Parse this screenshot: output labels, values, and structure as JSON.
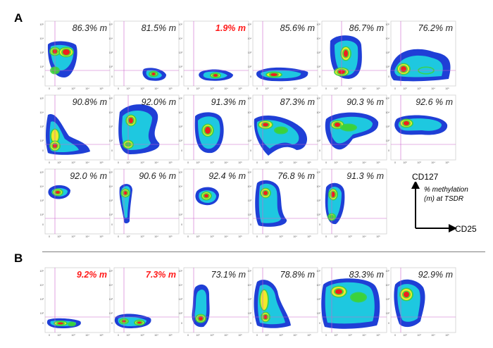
{
  "panel_letters": {
    "a": "A",
    "b": "B"
  },
  "axis_legend": {
    "y_label": "CD127",
    "x_label": "CD25",
    "note_line1": "% methylation",
    "note_line2": "(m) at TSDR"
  },
  "tick_labels": {
    "zero": "0",
    "e2": "10²",
    "e3": "10³",
    "e4": "10⁴",
    "e5": "10⁵"
  },
  "palette": {
    "outer": "#1f3fd6",
    "mid": "#1ec8e0",
    "green": "#3cd23a",
    "yellow": "#f2e82a",
    "red": "#ef1f1f",
    "gate": "#cc66cc"
  },
  "plots": [
    {
      "id": "a1",
      "label": "86.3% m",
      "low": false
    },
    {
      "id": "a2",
      "label": "81.5% m",
      "low": false
    },
    {
      "id": "a3",
      "label": "1.9% m",
      "low": true
    },
    {
      "id": "a4",
      "label": "85.6% m",
      "low": false
    },
    {
      "id": "a5",
      "label": "86.7% m",
      "low": false
    },
    {
      "id": "a6",
      "label": "76.2% m",
      "low": false
    },
    {
      "id": "a7",
      "label": "90.8% m",
      "low": false
    },
    {
      "id": "a8",
      "label": "92.0% m",
      "low": false
    },
    {
      "id": "a9",
      "label": "91.3% m",
      "low": false
    },
    {
      "id": "a10",
      "label": "87.3% m",
      "low": false
    },
    {
      "id": "a11",
      "label": "90.3 % m",
      "low": false
    },
    {
      "id": "a12",
      "label": "92.6 % m",
      "low": false
    },
    {
      "id": "a13",
      "label": "92.0 % m",
      "low": false
    },
    {
      "id": "a14",
      "label": "90.6 % m",
      "low": false
    },
    {
      "id": "a15",
      "label": "92.4 % m",
      "low": false
    },
    {
      "id": "a16",
      "label": "76.8 % m",
      "low": false
    },
    {
      "id": "a17",
      "label": "91.3 % m",
      "low": false
    },
    {
      "id": "b1",
      "label": "9.2% m",
      "low": true
    },
    {
      "id": "b2",
      "label": "7.3% m",
      "low": true
    },
    {
      "id": "b3",
      "label": "73.1% m",
      "low": false
    },
    {
      "id": "b4",
      "label": "78.8% m",
      "low": false
    },
    {
      "id": "b5",
      "label": "83.3% m",
      "low": false
    },
    {
      "id": "b6",
      "label": "92.9% m",
      "low": false
    }
  ]
}
